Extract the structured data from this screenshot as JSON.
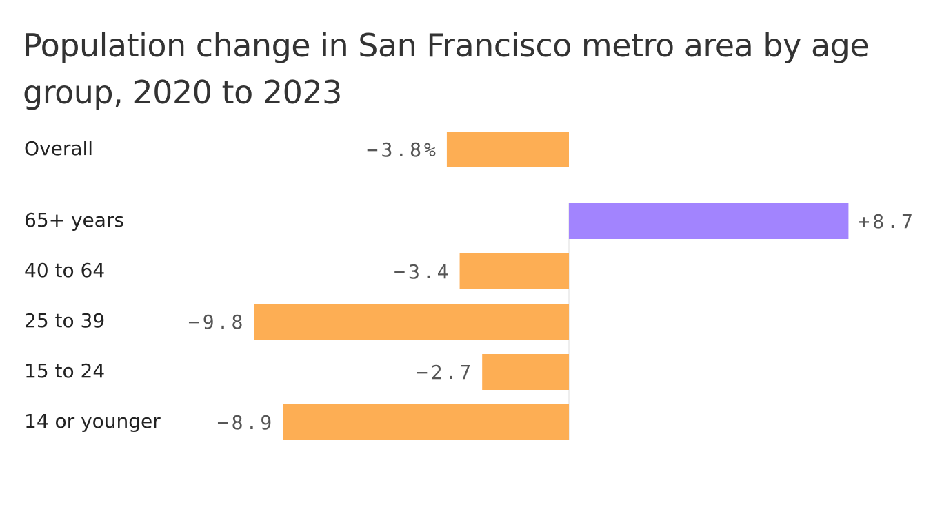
{
  "title": "Population change in San Francisco metro area by age group, 2020 to 2023",
  "chart_data": {
    "type": "bar",
    "orientation": "horizontal",
    "categories": [
      "Overall",
      "65+ years",
      "40 to 64",
      "25 to 39",
      "15 to 24",
      "14 or younger"
    ],
    "values": [
      -3.8,
      8.7,
      -3.4,
      -9.8,
      -2.7,
      -8.9
    ],
    "value_labels": [
      "−3.8%",
      "+8.7",
      "−3.4",
      "−9.8",
      "−2.7",
      "−8.9"
    ],
    "colors": {
      "negative": "#fdae54",
      "positive": "#a284fe",
      "baseline": "#dddddd"
    },
    "xlim": [
      -10,
      10
    ],
    "grid": false,
    "legend": "none"
  }
}
